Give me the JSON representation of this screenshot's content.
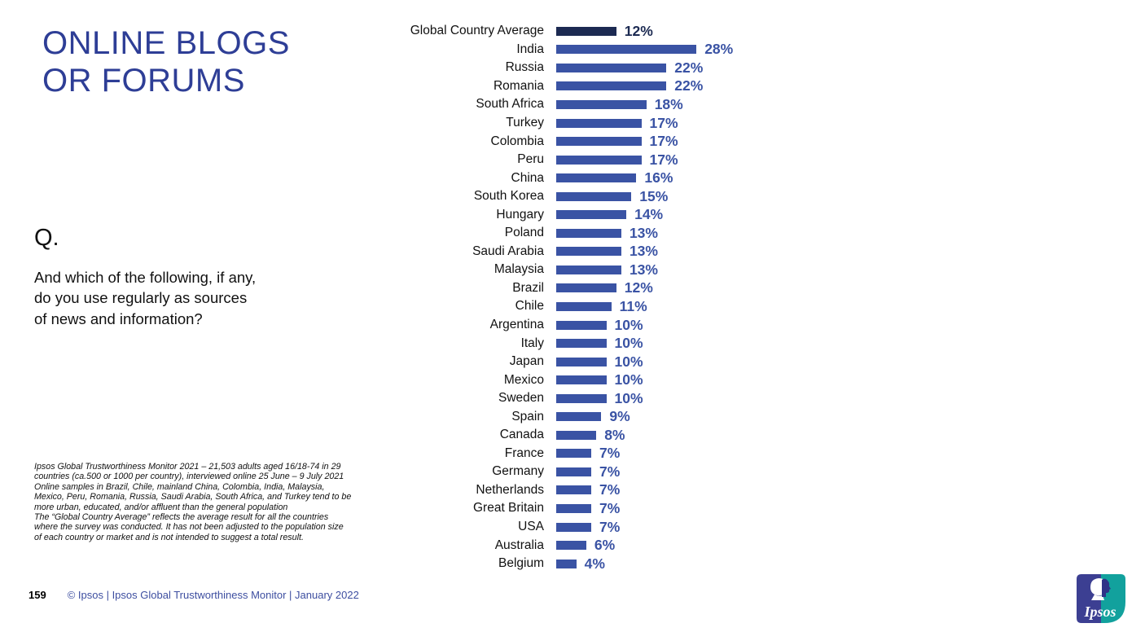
{
  "header": {
    "title": "ONLINE BLOGS\nOR FORUMS"
  },
  "question": {
    "label": "Q.",
    "text": "And which of the following, if any,\ndo you use regularly as sources\nof news and information?"
  },
  "footnote": {
    "para1": "Ipsos Global Trustworthiness Monitor 2021 – 21,503 adults aged 16/18-74 in 29 countries (ca.500 or 1000 per country), interviewed online 25 June – 9 July 2021",
    "para2": "Online samples in Brazil, Chile, mainland China, Colombia, India, Malaysia, Mexico, Peru, Romania, Russia, Saudi Arabia, South Africa, and Turkey tend to be more urban, educated, and/or affluent than the general population",
    "para3": "The “Global Country Average” reflects the average result for all the countries where the survey was conducted. It has not been adjusted to the population size of each country or market and is not intended to suggest a total result."
  },
  "footer": {
    "page_number": "159",
    "copyright": "© Ipsos | Ipsos Global Trustworthiness Monitor | January 2022"
  },
  "logo": {
    "text": "Ipsos",
    "blue": "#3C3F92",
    "teal": "#12A19D"
  },
  "chart_data": {
    "type": "bar",
    "orientation": "horizontal",
    "title": "",
    "xlabel": "",
    "ylabel": "",
    "xlim": [
      0,
      30
    ],
    "grid": false,
    "legend": false,
    "data_labels": true,
    "value_suffix": "%",
    "highlight_index": 0,
    "colors": {
      "bar": "#3A53A4",
      "highlight": "#1C2A52",
      "category_label": "#111111"
    },
    "categories": [
      "Global Country Average",
      "India",
      "Russia",
      "Romania",
      "South Africa",
      "Turkey",
      "Colombia",
      "Peru",
      "China",
      "South Korea",
      "Hungary",
      "Poland",
      "Saudi Arabia",
      "Malaysia",
      "Brazil",
      "Chile",
      "Argentina",
      "Italy",
      "Japan",
      "Mexico",
      "Sweden",
      "Spain",
      "Canada",
      "France",
      "Germany",
      "Netherlands",
      "Great Britain",
      "USA",
      "Australia",
      "Belgium"
    ],
    "values": [
      12,
      28,
      22,
      22,
      18,
      17,
      17,
      17,
      16,
      15,
      14,
      13,
      13,
      13,
      12,
      11,
      10,
      10,
      10,
      10,
      10,
      9,
      8,
      7,
      7,
      7,
      7,
      7,
      6,
      4
    ]
  }
}
